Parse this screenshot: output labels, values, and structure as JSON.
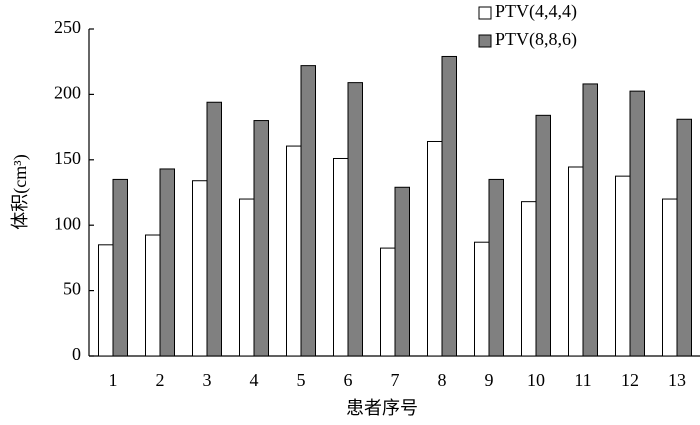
{
  "chart_data": {
    "type": "bar",
    "xlabel": "患者序号",
    "ylabel": "体积(cm³)",
    "categories": [
      "1",
      "2",
      "3",
      "4",
      "5",
      "6",
      "7",
      "8",
      "9",
      "10",
      "11",
      "12",
      "13"
    ],
    "series": [
      {
        "name": "PTV(4,4,4)",
        "color": "#ffffff",
        "values": [
          85,
          92.5,
          134,
          120,
          160.5,
          151,
          82.5,
          164,
          87,
          118,
          144.5,
          137.5,
          120
        ]
      },
      {
        "name": "PTV(8,8,6)",
        "color": "#808080",
        "values": [
          135,
          143,
          194,
          180,
          222,
          209,
          129,
          229,
          135,
          184,
          208,
          202.5,
          181
        ]
      }
    ],
    "ylim": [
      0,
      250
    ],
    "yticks": [
      0,
      50,
      100,
      150,
      200,
      250
    ],
    "grid": false,
    "legend": "top-right"
  }
}
